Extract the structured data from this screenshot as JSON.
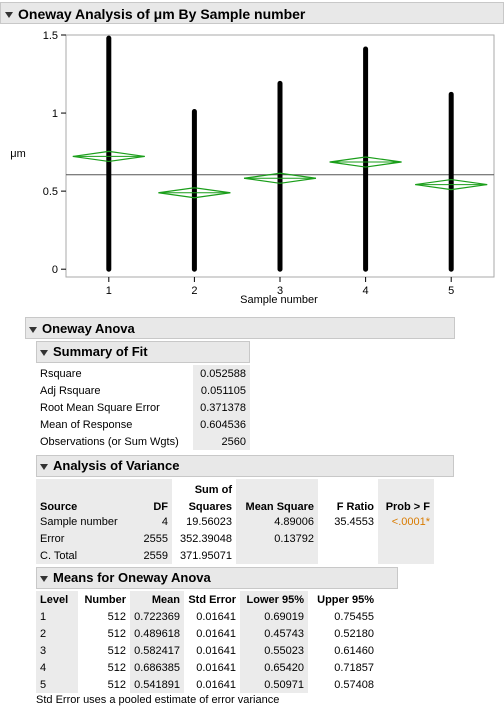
{
  "title": "Oneway Analysis of μm By Sample number",
  "chart_data": {
    "type": "scatter",
    "xlabel": "Sample number",
    "ylabel": "μm",
    "ylim": [
      -0.05,
      1.5
    ],
    "yticks": [
      "0",
      "0.5",
      "1",
      "1.5"
    ],
    "yticks_values": [
      0,
      0.5,
      1,
      1.5
    ],
    "categories": [
      "1",
      "2",
      "3",
      "4",
      "5"
    ],
    "grand_mean": 0.604536,
    "groups": [
      {
        "level": "1",
        "min": 0.0,
        "max": 1.48,
        "mean": 0.722369,
        "lower": 0.69019,
        "upper": 0.75455
      },
      {
        "level": "2",
        "min": 0.0,
        "max": 1.01,
        "mean": 0.489618,
        "lower": 0.45743,
        "upper": 0.5218
      },
      {
        "level": "3",
        "min": 0.0,
        "max": 1.19,
        "mean": 0.582417,
        "lower": 0.55023,
        "upper": 0.6146
      },
      {
        "level": "4",
        "min": 0.0,
        "max": 1.41,
        "mean": 0.686385,
        "lower": 0.6542,
        "upper": 0.71857
      },
      {
        "level": "5",
        "min": 0.0,
        "max": 1.12,
        "mean": 0.541891,
        "lower": 0.50971,
        "upper": 0.57408
      }
    ],
    "colors": {
      "points": "#000000",
      "diamond": "#1a9e1a",
      "mean_line": "#555555"
    }
  },
  "anova_title": "Oneway Anova",
  "fit": {
    "title": "Summary of Fit",
    "rows": [
      {
        "label": "Rsquare",
        "value": "0.052588"
      },
      {
        "label": "Adj Rsquare",
        "value": "0.051105"
      },
      {
        "label": "Root Mean Square Error",
        "value": "0.371378"
      },
      {
        "label": "Mean of Response",
        "value": "0.604536"
      },
      {
        "label": "Observations (or Sum Wgts)",
        "value": "2560"
      }
    ]
  },
  "aov": {
    "title": "Analysis of Variance",
    "headers": {
      "source": "Source",
      "df": "DF",
      "ss_top": "Sum of",
      "ss": "Squares",
      "ms": "Mean Square",
      "f": "F Ratio",
      "p": "Prob > F"
    },
    "rows": [
      {
        "source": "Sample number",
        "df": "4",
        "ss": "19.56023",
        "ms": "4.89006",
        "f": "35.4553",
        "p": "<.0001*"
      },
      {
        "source": "Error",
        "df": "2555",
        "ss": "352.39048",
        "ms": "0.13792",
        "f": "",
        "p": ""
      },
      {
        "source": "C. Total",
        "df": "2559",
        "ss": "371.95071",
        "ms": "",
        "f": "",
        "p": ""
      }
    ]
  },
  "means": {
    "title": "Means for Oneway Anova",
    "headers": {
      "level": "Level",
      "number": "Number",
      "mean": "Mean",
      "se": "Std Error",
      "lower": "Lower 95%",
      "upper": "Upper 95%"
    },
    "rows": [
      {
        "level": "1",
        "number": "512",
        "mean": "0.722369",
        "se": "0.01641",
        "lower": "0.69019",
        "upper": "0.75455"
      },
      {
        "level": "2",
        "number": "512",
        "mean": "0.489618",
        "se": "0.01641",
        "lower": "0.45743",
        "upper": "0.52180"
      },
      {
        "level": "3",
        "number": "512",
        "mean": "0.582417",
        "se": "0.01641",
        "lower": "0.55023",
        "upper": "0.61460"
      },
      {
        "level": "4",
        "number": "512",
        "mean": "0.686385",
        "se": "0.01641",
        "lower": "0.65420",
        "upper": "0.71857"
      },
      {
        "level": "5",
        "number": "512",
        "mean": "0.541891",
        "se": "0.01641",
        "lower": "0.50971",
        "upper": "0.57408"
      }
    ],
    "footnote": "Std Error uses a pooled estimate of error variance"
  }
}
